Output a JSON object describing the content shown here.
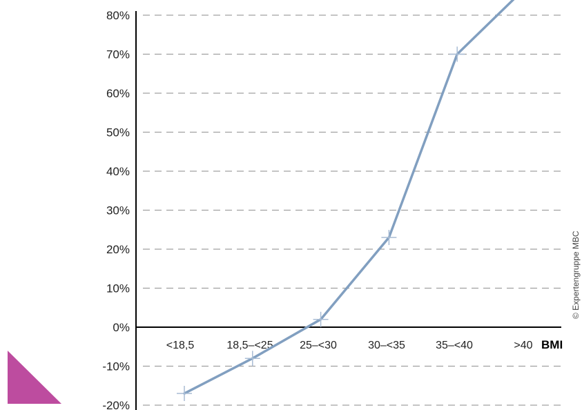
{
  "chart_data": {
    "type": "line",
    "categories": [
      "<18,5",
      "18,5–<25",
      "25–<30",
      "30–<35",
      "35–<40",
      ">40"
    ],
    "values": [
      -17,
      -8,
      2,
      23,
      70,
      87
    ],
    "y_ticks": [
      80,
      70,
      60,
      50,
      40,
      30,
      20,
      10,
      0,
      -10,
      -20
    ],
    "ylim": [
      -20,
      82
    ],
    "xlabel": "BMI",
    "ylabel": "",
    "title": "",
    "grid": true,
    "y_format": "percent",
    "credit": "© Expertengruppe MBC"
  },
  "colors": {
    "line": "#819fc0",
    "marker": "#a8bcd4",
    "grid": "#a0a0a0",
    "axis": "#000000",
    "corner_triangle": "#bd4c9f"
  }
}
